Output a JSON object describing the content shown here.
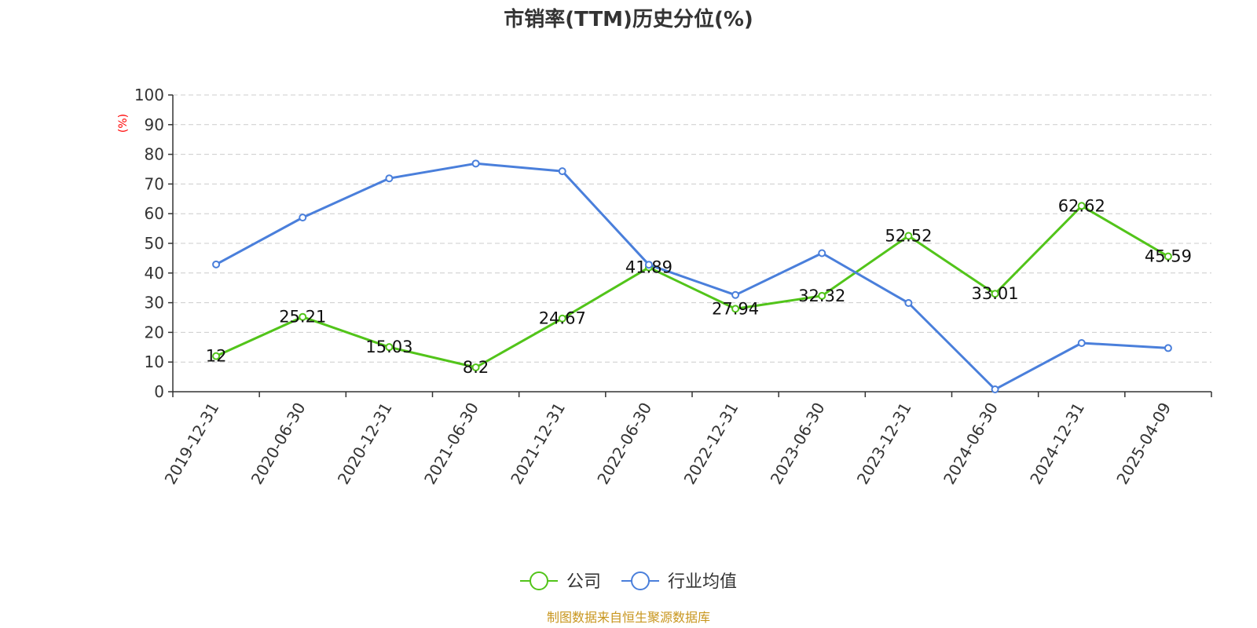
{
  "chart_data": {
    "type": "line",
    "title": "市销率(TTM)历史分位(%)",
    "ylabel": "(%)",
    "ylim": [
      0,
      100
    ],
    "yticks": [
      0,
      10,
      20,
      30,
      40,
      50,
      60,
      70,
      80,
      90,
      100
    ],
    "grid": true,
    "legend_position": "bottom-center",
    "x": [
      "2019-12-31",
      "2020-06-30",
      "2020-12-31",
      "2021-06-30",
      "2021-12-31",
      "2022-06-30",
      "2022-12-31",
      "2023-06-30",
      "2023-12-31",
      "2024-06-30",
      "2024-12-31",
      "2025-04-09"
    ],
    "series": [
      {
        "name": "公司",
        "color": "#52c41a",
        "show_labels": true,
        "values": [
          12,
          25.21,
          15.03,
          8.2,
          24.67,
          41.89,
          27.94,
          32.32,
          52.52,
          33.01,
          62.62,
          45.59
        ]
      },
      {
        "name": "行业均值",
        "color": "#4a7fdb",
        "show_labels": false,
        "values": [
          42.9,
          58.7,
          71.9,
          76.9,
          74.3,
          42.8,
          32.6,
          46.7,
          29.9,
          0.8,
          16.4,
          14.7
        ]
      }
    ],
    "ylabel_color": "#ff0000",
    "source": "制图数据来自恒生聚源数据库",
    "source_color": "#c8961e"
  }
}
